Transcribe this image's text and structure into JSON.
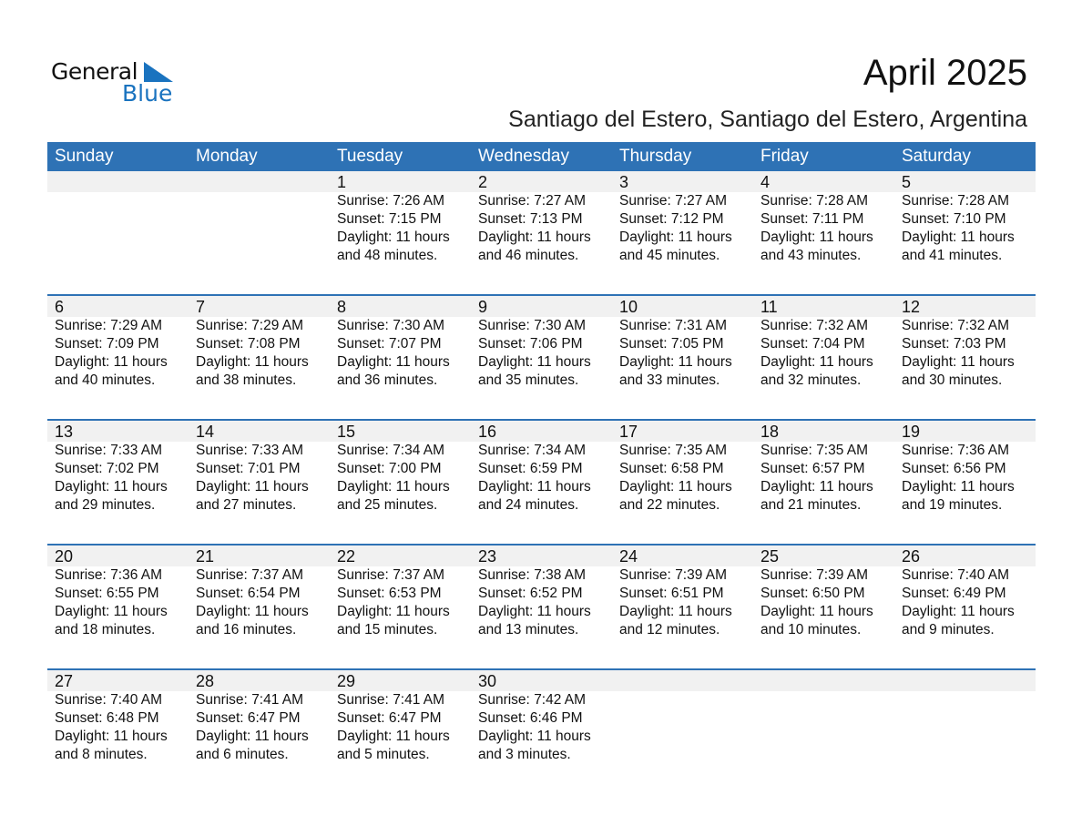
{
  "logo": {
    "general": "General",
    "blue": "Blue",
    "accent": "#1a73bf"
  },
  "title": "April 2025",
  "subtitle": "Santiago del Estero, Santiago del Estero, Argentina",
  "header_color": "#2e72b5",
  "weekdays": [
    "Sunday",
    "Monday",
    "Tuesday",
    "Wednesday",
    "Thursday",
    "Friday",
    "Saturday"
  ],
  "labels": {
    "sunrise": "Sunrise:",
    "sunset": "Sunset:",
    "daylight": "Daylight:"
  },
  "first_weekday_index": 2,
  "days": [
    {
      "d": "1",
      "rise": "7:26 AM",
      "set": "7:15 PM",
      "l1": "11 hours",
      "l2": "and 48 minutes."
    },
    {
      "d": "2",
      "rise": "7:27 AM",
      "set": "7:13 PM",
      "l1": "11 hours",
      "l2": "and 46 minutes."
    },
    {
      "d": "3",
      "rise": "7:27 AM",
      "set": "7:12 PM",
      "l1": "11 hours",
      "l2": "and 45 minutes."
    },
    {
      "d": "4",
      "rise": "7:28 AM",
      "set": "7:11 PM",
      "l1": "11 hours",
      "l2": "and 43 minutes."
    },
    {
      "d": "5",
      "rise": "7:28 AM",
      "set": "7:10 PM",
      "l1": "11 hours",
      "l2": "and 41 minutes."
    },
    {
      "d": "6",
      "rise": "7:29 AM",
      "set": "7:09 PM",
      "l1": "11 hours",
      "l2": "and 40 minutes."
    },
    {
      "d": "7",
      "rise": "7:29 AM",
      "set": "7:08 PM",
      "l1": "11 hours",
      "l2": "and 38 minutes."
    },
    {
      "d": "8",
      "rise": "7:30 AM",
      "set": "7:07 PM",
      "l1": "11 hours",
      "l2": "and 36 minutes."
    },
    {
      "d": "9",
      "rise": "7:30 AM",
      "set": "7:06 PM",
      "l1": "11 hours",
      "l2": "and 35 minutes."
    },
    {
      "d": "10",
      "rise": "7:31 AM",
      "set": "7:05 PM",
      "l1": "11 hours",
      "l2": "and 33 minutes."
    },
    {
      "d": "11",
      "rise": "7:32 AM",
      "set": "7:04 PM",
      "l1": "11 hours",
      "l2": "and 32 minutes."
    },
    {
      "d": "12",
      "rise": "7:32 AM",
      "set": "7:03 PM",
      "l1": "11 hours",
      "l2": "and 30 minutes."
    },
    {
      "d": "13",
      "rise": "7:33 AM",
      "set": "7:02 PM",
      "l1": "11 hours",
      "l2": "and 29 minutes."
    },
    {
      "d": "14",
      "rise": "7:33 AM",
      "set": "7:01 PM",
      "l1": "11 hours",
      "l2": "and 27 minutes."
    },
    {
      "d": "15",
      "rise": "7:34 AM",
      "set": "7:00 PM",
      "l1": "11 hours",
      "l2": "and 25 minutes."
    },
    {
      "d": "16",
      "rise": "7:34 AM",
      "set": "6:59 PM",
      "l1": "11 hours",
      "l2": "and 24 minutes."
    },
    {
      "d": "17",
      "rise": "7:35 AM",
      "set": "6:58 PM",
      "l1": "11 hours",
      "l2": "and 22 minutes."
    },
    {
      "d": "18",
      "rise": "7:35 AM",
      "set": "6:57 PM",
      "l1": "11 hours",
      "l2": "and 21 minutes."
    },
    {
      "d": "19",
      "rise": "7:36 AM",
      "set": "6:56 PM",
      "l1": "11 hours",
      "l2": "and 19 minutes."
    },
    {
      "d": "20",
      "rise": "7:36 AM",
      "set": "6:55 PM",
      "l1": "11 hours",
      "l2": "and 18 minutes."
    },
    {
      "d": "21",
      "rise": "7:37 AM",
      "set": "6:54 PM",
      "l1": "11 hours",
      "l2": "and 16 minutes."
    },
    {
      "d": "22",
      "rise": "7:37 AM",
      "set": "6:53 PM",
      "l1": "11 hours",
      "l2": "and 15 minutes."
    },
    {
      "d": "23",
      "rise": "7:38 AM",
      "set": "6:52 PM",
      "l1": "11 hours",
      "l2": "and 13 minutes."
    },
    {
      "d": "24",
      "rise": "7:39 AM",
      "set": "6:51 PM",
      "l1": "11 hours",
      "l2": "and 12 minutes."
    },
    {
      "d": "25",
      "rise": "7:39 AM",
      "set": "6:50 PM",
      "l1": "11 hours",
      "l2": "and 10 minutes."
    },
    {
      "d": "26",
      "rise": "7:40 AM",
      "set": "6:49 PM",
      "l1": "11 hours",
      "l2": "and 9 minutes."
    },
    {
      "d": "27",
      "rise": "7:40 AM",
      "set": "6:48 PM",
      "l1": "11 hours",
      "l2": "and 8 minutes."
    },
    {
      "d": "28",
      "rise": "7:41 AM",
      "set": "6:47 PM",
      "l1": "11 hours",
      "l2": "and 6 minutes."
    },
    {
      "d": "29",
      "rise": "7:41 AM",
      "set": "6:47 PM",
      "l1": "11 hours",
      "l2": "and 5 minutes."
    },
    {
      "d": "30",
      "rise": "7:42 AM",
      "set": "6:46 PM",
      "l1": "11 hours",
      "l2": "and 3 minutes."
    }
  ]
}
